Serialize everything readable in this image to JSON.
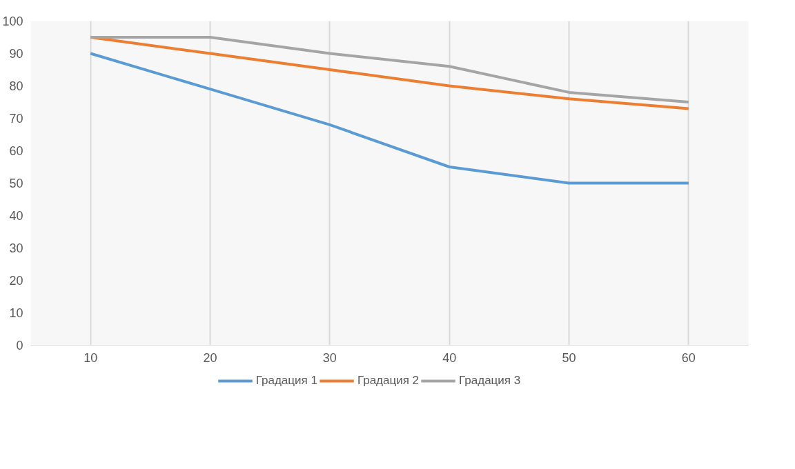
{
  "chart_data": {
    "type": "line",
    "categories": [
      "10",
      "20",
      "30",
      "40",
      "50",
      "60"
    ],
    "series": [
      {
        "name": "Градация 1",
        "color": "#5b9bd5",
        "values": [
          90,
          79,
          68,
          55,
          50,
          50
        ]
      },
      {
        "name": "Градация 2",
        "color": "#ed7d31",
        "values": [
          95,
          90,
          85,
          80,
          76,
          73
        ]
      },
      {
        "name": "Градация 3",
        "color": "#a5a5a5",
        "values": [
          95,
          95,
          90,
          86,
          78,
          75
        ]
      }
    ],
    "ylim": [
      0,
      100
    ],
    "yticks": [
      0,
      10,
      20,
      30,
      40,
      50,
      60,
      70,
      80,
      90,
      100
    ],
    "grid": "x",
    "legend": "bottom",
    "marker": "none",
    "line_style": "solid"
  }
}
